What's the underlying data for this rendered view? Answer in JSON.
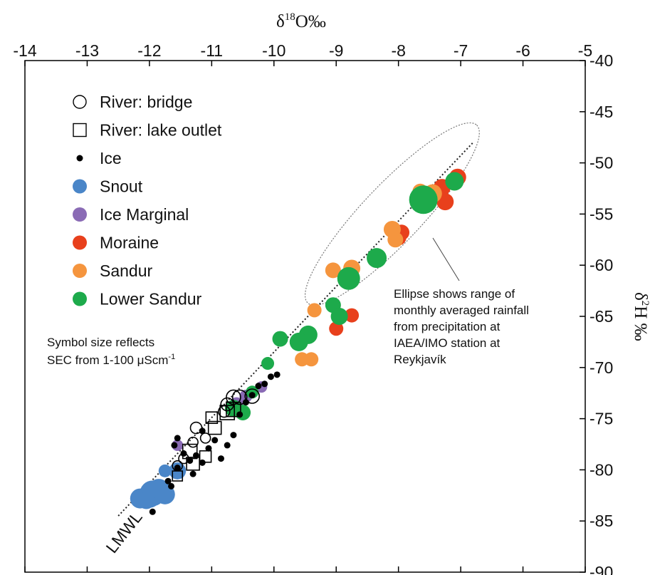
{
  "chart_data": {
    "type": "scatter",
    "title": "",
    "xlabel": {
      "prefix": "δ",
      "sup": "18",
      "main": "O‰"
    },
    "ylabel": {
      "prefix": "δ",
      "sup": "2",
      "main": "H ‰"
    },
    "x_ticks": [
      "-14",
      "-13",
      "-12",
      "-11",
      "-10",
      "-9",
      "-8",
      "-7",
      "-6",
      "-5"
    ],
    "y_ticks": [
      "-40",
      "-45",
      "-50",
      "-55",
      "-60",
      "-65",
      "-70",
      "-75",
      "-80",
      "-85",
      "-90"
    ],
    "xlim": [
      -14,
      -5
    ],
    "ylim": [
      -90,
      -40
    ],
    "grid": false,
    "legend_placement": "top-left",
    "legend": [
      {
        "label": "River: bridge",
        "marker": "open-circle",
        "color": "#000000"
      },
      {
        "label": "River: lake outlet",
        "marker": "open-square",
        "color": "#000000"
      },
      {
        "label": "Ice",
        "marker": "small-dot",
        "color": "#000000"
      },
      {
        "label": "Snout",
        "marker": "circle",
        "color": "#4a86c8"
      },
      {
        "label": "Ice Marginal",
        "marker": "circle",
        "color": "#8a6bb5"
      },
      {
        "label": "Moraine",
        "marker": "circle",
        "color": "#e8401c"
      },
      {
        "label": "Sandur",
        "marker": "circle",
        "color": "#f5953e"
      },
      {
        "label": "Lower Sandur",
        "marker": "circle",
        "color": "#1daa4b"
      }
    ],
    "size_note": {
      "line1": "Symbol size reflects",
      "line2": "SEC from 1-100 μScm",
      "line2_sup": "-1"
    },
    "ellipse_note": [
      "Ellipse shows range of",
      "monthly averaged rainfall",
      "from precipitation at",
      "IAEA/IMO station at",
      "Reykjavík"
    ],
    "lmwl_label": "LMWL",
    "lmwl": {
      "x": [
        -12.5,
        -6.8
      ],
      "y": [
        -84.5,
        -48.0
      ]
    },
    "ellipse": {
      "center": [
        -8.1,
        -55.0
      ],
      "semi_major_x_span": [
        -9.55,
        -6.6
      ],
      "note": "dotted ellipse enclosing rainfall range"
    },
    "series": [
      {
        "name": "Snout",
        "color": "#4a86c8",
        "points": [
          [
            -12.15,
            -82.8,
            14
          ],
          [
            -12.0,
            -82.6,
            16
          ],
          [
            -11.95,
            -82.3,
            18
          ],
          [
            -11.85,
            -82.0,
            16
          ],
          [
            -11.75,
            -82.4,
            14
          ],
          [
            -12.05,
            -83.0,
            12
          ],
          [
            -11.9,
            -81.9,
            12
          ],
          [
            -11.55,
            -80.1,
            12
          ],
          [
            -11.75,
            -80.1,
            9
          ]
        ]
      },
      {
        "name": "Ice Marginal",
        "color": "#8a6bb5",
        "points": [
          [
            -11.55,
            -77.6,
            8
          ],
          [
            -10.6,
            -73.6,
            10
          ],
          [
            -10.45,
            -72.8,
            9
          ],
          [
            -10.2,
            -71.9,
            8
          ]
        ]
      },
      {
        "name": "Moraine",
        "color": "#e8401c",
        "points": [
          [
            -7.05,
            -51.4,
            12
          ],
          [
            -7.3,
            -52.4,
            12
          ],
          [
            -7.25,
            -53.8,
            12
          ],
          [
            -7.95,
            -56.8,
            11
          ],
          [
            -8.0,
            -57.3,
            11
          ],
          [
            -8.75,
            -64.9,
            10
          ],
          [
            -9.0,
            -66.2,
            10
          ]
        ]
      },
      {
        "name": "Sandur",
        "color": "#f5953e",
        "points": [
          [
            -7.45,
            -53.0,
            13
          ],
          [
            -7.65,
            -52.8,
            11
          ],
          [
            -8.1,
            -56.5,
            12
          ],
          [
            -8.05,
            -57.5,
            11
          ],
          [
            -8.75,
            -60.3,
            12
          ],
          [
            -9.05,
            -60.5,
            11
          ],
          [
            -9.35,
            -64.4,
            10
          ],
          [
            -9.4,
            -69.2,
            10
          ],
          [
            -9.55,
            -69.2,
            10
          ]
        ]
      },
      {
        "name": "Lower Sandur",
        "color": "#1daa4b",
        "points": [
          [
            -7.6,
            -53.6,
            20
          ],
          [
            -7.1,
            -51.8,
            13
          ],
          [
            -8.35,
            -59.3,
            14
          ],
          [
            -8.8,
            -61.3,
            16
          ],
          [
            -9.05,
            -63.9,
            11
          ],
          [
            -8.95,
            -65.0,
            12
          ],
          [
            -9.45,
            -66.8,
            13
          ],
          [
            -9.6,
            -67.5,
            13
          ],
          [
            -9.9,
            -67.2,
            11
          ],
          [
            -10.1,
            -69.6,
            9
          ],
          [
            -10.65,
            -74.0,
            12
          ],
          [
            -10.5,
            -74.4,
            11
          ],
          [
            -10.35,
            -72.4,
            9
          ]
        ]
      },
      {
        "name": "Ice",
        "color": "#000000",
        "points": [
          [
            -11.95,
            -84.1,
            4.5
          ],
          [
            -11.7,
            -81.1,
            4.5
          ],
          [
            -11.65,
            -81.6,
            4.5
          ],
          [
            -11.55,
            -79.8,
            4.5
          ],
          [
            -11.6,
            -77.6,
            4.5
          ],
          [
            -11.55,
            -76.9,
            4.5
          ],
          [
            -11.45,
            -78.4,
            4.5
          ],
          [
            -11.35,
            -79.1,
            4.5
          ],
          [
            -11.25,
            -78.6,
            4.5
          ],
          [
            -11.15,
            -79.3,
            4.5
          ],
          [
            -11.05,
            -77.9,
            4.5
          ],
          [
            -10.95,
            -77.1,
            4.5
          ],
          [
            -10.85,
            -78.9,
            4.5
          ],
          [
            -10.75,
            -77.6,
            4.5
          ],
          [
            -10.65,
            -76.6,
            4.5
          ],
          [
            -10.55,
            -74.6,
            4.5
          ],
          [
            -10.45,
            -73.4,
            4.5
          ],
          [
            -10.35,
            -72.7,
            4.5
          ],
          [
            -10.25,
            -71.8,
            4.5
          ],
          [
            -10.15,
            -71.6,
            4.5
          ],
          [
            -10.05,
            -70.9,
            4.5
          ],
          [
            -9.95,
            -70.7,
            4.5
          ],
          [
            -11.3,
            -80.4,
            4.5
          ],
          [
            -11.15,
            -76.2,
            4.5
          ]
        ]
      },
      {
        "name": "River: bridge",
        "color": "#000000",
        "points": [
          [
            -11.25,
            -75.9,
            8
          ],
          [
            -11.1,
            -76.9,
            7
          ],
          [
            -11.3,
            -77.3,
            7
          ],
          [
            -11.45,
            -78.9,
            7
          ],
          [
            -11.55,
            -79.6,
            7
          ],
          [
            -10.75,
            -73.6,
            9
          ],
          [
            -10.65,
            -72.9,
            10
          ],
          [
            -10.55,
            -72.9,
            10
          ],
          [
            -10.35,
            -72.8,
            10
          ],
          [
            -10.8,
            -74.3,
            8
          ]
        ]
      },
      {
        "name": "River: lake outlet",
        "color": "#000000",
        "points": [
          [
            -11.35,
            -78.2,
            10
          ],
          [
            -11.3,
            -79.4,
            9
          ],
          [
            -11.1,
            -78.7,
            8
          ],
          [
            -10.95,
            -75.9,
            9
          ],
          [
            -11.0,
            -74.9,
            8
          ],
          [
            -10.75,
            -74.4,
            10
          ],
          [
            -10.65,
            -74.1,
            10
          ],
          [
            -11.55,
            -80.6,
            7
          ]
        ]
      }
    ]
  }
}
